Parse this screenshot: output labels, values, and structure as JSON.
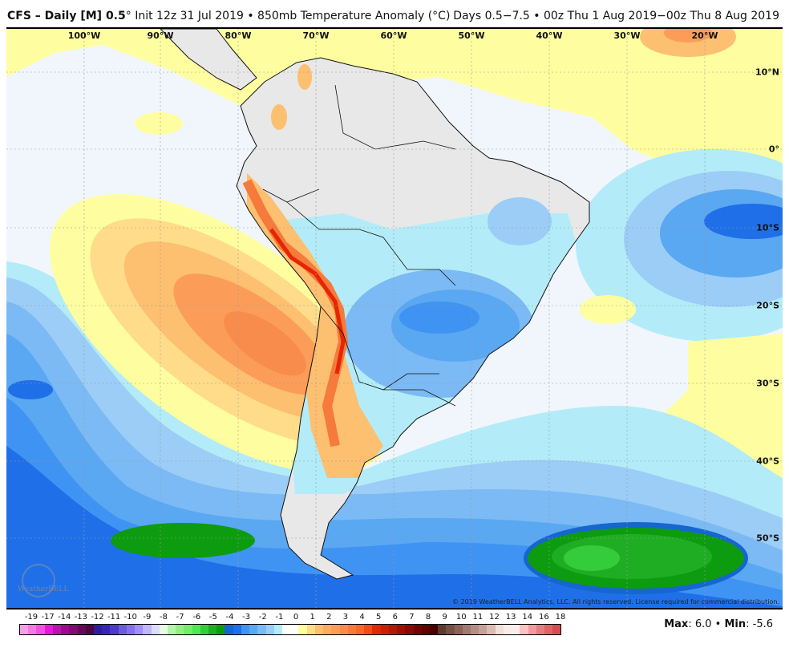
{
  "header": {
    "model": "CFS – Daily [M] 0.5",
    "init": "° Init 12z 31 Jul 2019 • 850mb Temperature Anomaly (°C)",
    "valid": "Days 0.5−7.5 • 00z Thu 1 Aug 2019−00z Thu 8 Aug 2019"
  },
  "map": {
    "longitude_labels": [
      "100°W",
      "90°W",
      "80°W",
      "70°W",
      "60°W",
      "50°W",
      "40°W",
      "30°W",
      "20°W"
    ],
    "latitude_labels": [
      "10°N",
      "0°",
      "10°S",
      "20°S",
      "30°S",
      "40°S",
      "50°S"
    ],
    "copyright": "© 2019 WeatherBELL Analytics, LLC. All rights reserved. License required for commercial distribution.",
    "logo_text": "WeatherBELL"
  },
  "colorbar": {
    "labels": [
      "-19",
      "-17",
      "-14",
      "-13",
      "-12",
      "-11",
      "-10",
      "-9",
      "-8",
      "-7",
      "-6",
      "-5",
      "-4",
      "-3",
      "-2",
      "-1",
      "0",
      "1",
      "2",
      "3",
      "4",
      "5",
      "6",
      "7",
      "8",
      "9",
      "10",
      "11",
      "12",
      "13",
      "14",
      "16",
      "18"
    ],
    "colors": [
      "#f79ee8",
      "#f27ae3",
      "#ee52de",
      "#e817d5",
      "#c010ab",
      "#9c0b8e",
      "#7e0a72",
      "#650858",
      "#4e0640",
      "#2c1f9a",
      "#3a25b0",
      "#4a3cc4",
      "#6b5cd6",
      "#8672e6",
      "#a28ffa",
      "#c0b6fb",
      "#dcdcfb",
      "#e7fce2",
      "#b5f5a9",
      "#96ef86",
      "#77eb6b",
      "#4fe650",
      "#35cc3c",
      "#1fae23",
      "#0d9b10",
      "#1666cf",
      "#1f6fe8",
      "#3f93f2",
      "#5aa7f2",
      "#7bbaf4",
      "#9ccdf6",
      "#b3ecf8",
      "#ffffff",
      "#ffffff",
      "#fefea0",
      "#fedc8a",
      "#fdbf70",
      "#fcab62",
      "#fb9d59",
      "#f88c4c",
      "#f57a3c",
      "#f6692b",
      "#f34a1a",
      "#e52600",
      "#ce1e00",
      "#b51700",
      "#9e1000",
      "#870a00",
      "#700500",
      "#5d0300",
      "#480000",
      "#5d3b2e",
      "#745045",
      "#8b6357",
      "#a07a6e",
      "#b28f86",
      "#c6a198",
      "#dcbcb2",
      "#f0e0d8",
      "#fbecea",
      "#fbecea",
      "#f9c3c6",
      "#f09aa0",
      "#e37e82",
      "#dc6466",
      "#d14e50"
    ]
  },
  "stats": {
    "max_label": "Max",
    "max": "6.0",
    "min_label": "Min",
    "min": "-5.6"
  }
}
